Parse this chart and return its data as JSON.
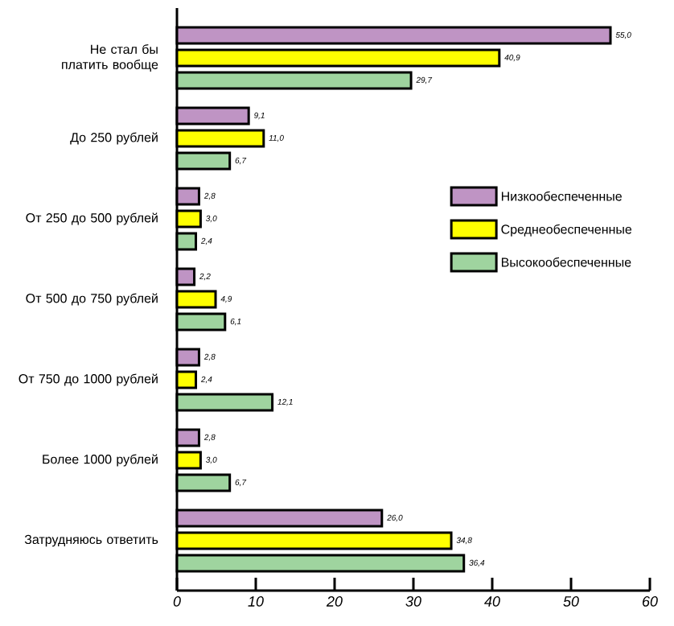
{
  "chart_data": {
    "type": "bar",
    "orientation": "horizontal",
    "categories": [
      "Не стал бы платить вообще",
      "До 250 рублей",
      "От 250 до 500 рублей",
      "От 500 до 750 рублей",
      "От 750 до 1000 рублей",
      "Более 1000 рублей",
      "Затрудняюсь ответить"
    ],
    "series": [
      {
        "name": "Низкообеспеченные",
        "color": "#bf94c4",
        "values": [
          55.0,
          9.1,
          2.8,
          2.2,
          2.8,
          2.8,
          26.0
        ],
        "value_labels": [
          "55,0",
          "9,1",
          "2,8",
          "2,2",
          "2,8",
          "2,8",
          "26,0"
        ]
      },
      {
        "name": "Среднеобеспеченные",
        "color": "#ffff00",
        "values": [
          40.9,
          11.0,
          3.0,
          4.9,
          2.4,
          3.0,
          34.8
        ],
        "value_labels": [
          "40,9",
          "11,0",
          "3,0",
          "4,9",
          "2,4",
          "3,0",
          "34,8"
        ]
      },
      {
        "name": "Высокообеспеченные",
        "color": "#9fd49f",
        "values": [
          29.7,
          6.7,
          2.4,
          6.1,
          12.1,
          6.7,
          36.4
        ],
        "value_labels": [
          "29,7",
          "6,7",
          "2,4",
          "6,1",
          "12,1",
          "6,7",
          "36,4"
        ]
      }
    ],
    "xlim": [
      0,
      60
    ],
    "xticks": [
      0,
      10,
      20,
      30,
      40,
      50,
      60
    ],
    "grid": false,
    "legend": "right"
  }
}
